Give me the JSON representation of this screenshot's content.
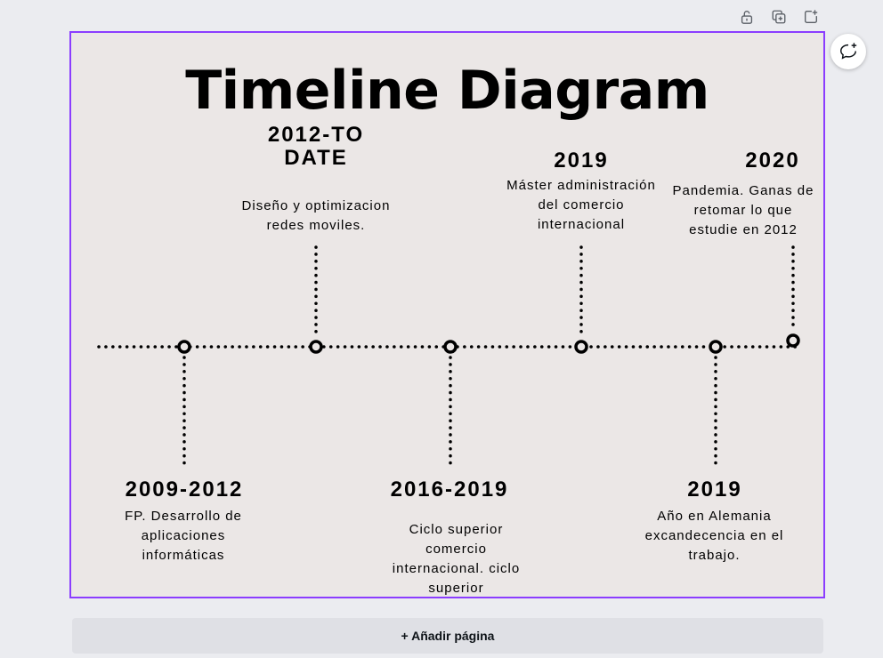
{
  "toolbar": {
    "lock_icon": "lock-icon",
    "duplicate_icon": "duplicate-page-icon",
    "add_icon": "add-page-icon"
  },
  "comment_icon": "add-comment-icon",
  "design": {
    "title": "Timeline Diagram",
    "accent_color": "#8b3dff",
    "canvas_bg": "#ebe7e6",
    "events": [
      {
        "year": "2009-2012",
        "description": "FP. Desarrollo de aplicaciones informáticas"
      },
      {
        "year": "2012-TO DATE",
        "description": "Diseño y optimizacion redes moviles."
      },
      {
        "year": "2016-2019",
        "description": "Ciclo superior comercio internacional. ciclo superior"
      },
      {
        "year": "2019",
        "description": "Máster administración del comercio internacional"
      },
      {
        "year": "2019",
        "description": "Año en Alemania excandecencia en el trabajo."
      },
      {
        "year": "2020",
        "description": "Pandemia. Ganas de retomar lo que estudie en 2012"
      }
    ]
  },
  "add_page_label": "+ Añadir página"
}
